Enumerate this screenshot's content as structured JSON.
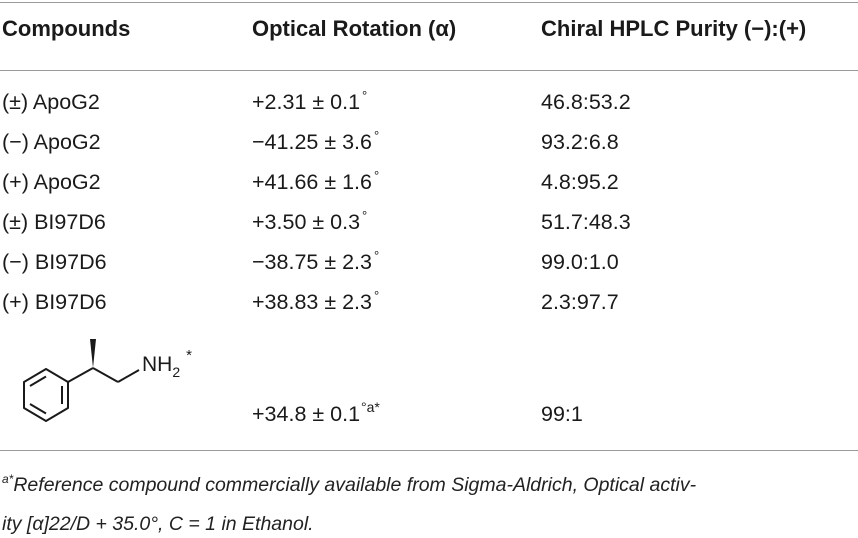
{
  "table": {
    "headers": [
      "Compounds",
      "Optical Rotation (α)",
      "Chiral HPLC Purity (−):(+)"
    ],
    "rows": [
      {
        "compound": "(±) ApoG2",
        "rotation": "+2.31 ± 0.1",
        "purity": "46.8:53.2"
      },
      {
        "compound": "(−) ApoG2",
        "rotation": "−41.25 ± 3.6",
        "purity": "93.2:6.8"
      },
      {
        "compound": "(+) ApoG2",
        "rotation": "+41.66 ± 1.6",
        "purity": "4.8:95.2"
      },
      {
        "compound": "(±) BI97D6",
        "rotation": "+3.50 ± 0.3",
        "purity": "51.7:48.3"
      },
      {
        "compound": "(−) BI97D6",
        "rotation": "−38.75 ± 2.3",
        "purity": "99.0:1.0"
      },
      {
        "compound": "(+) BI97D6",
        "rotation": "+38.83 ± 2.3",
        "purity": "2.3:97.7"
      }
    ],
    "degree_symbol": "°",
    "structure_row": {
      "label_nh": "NH",
      "label_sub": "2",
      "label_star": "*",
      "rotation": "+34.8 ± 0.1",
      "rotation_note": "°a*",
      "purity": "99:1"
    }
  },
  "footnote": {
    "marker": "a*",
    "line1": "Reference compound commercially available from Sigma-Aldrich, Optical activ-",
    "line2": "ity [α]22/D + 35.0°, C = 1 in Ethanol."
  }
}
